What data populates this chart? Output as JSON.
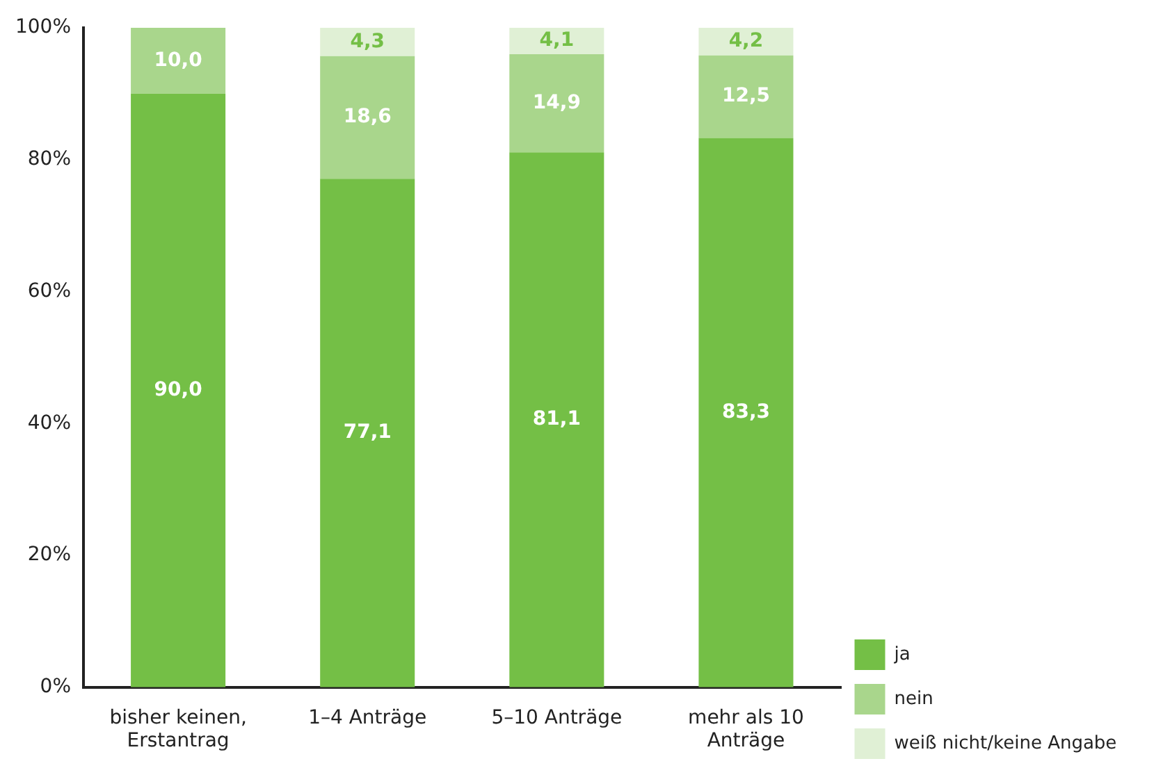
{
  "chart_data": {
    "type": "bar",
    "stacked": true,
    "categories": [
      "bisher keinen, Erstantrag",
      "1–4 Anträge",
      "5–10 Anträge",
      "mehr als 10 Anträge"
    ],
    "series": [
      {
        "name": "ja",
        "color": "#74bf46",
        "values": [
          90.0,
          77.1,
          81.1,
          83.3
        ],
        "value_labels": [
          "90,0",
          "77,1",
          "81,1",
          "83,3"
        ]
      },
      {
        "name": "nein",
        "color": "#a9d68c",
        "values": [
          10.0,
          18.6,
          14.9,
          12.5
        ],
        "value_labels": [
          "10,0",
          "18,6",
          "14,9",
          "12,5"
        ]
      },
      {
        "name": "weiß nicht/keine Angabe",
        "color": "#e0f0d5",
        "values": [
          null,
          4.3,
          4.1,
          4.2
        ],
        "value_labels": [
          null,
          "4,3",
          "4,1",
          "4,2"
        ]
      }
    ],
    "ylim": [
      0,
      100
    ],
    "yticks": [
      {
        "value": 0,
        "label": "0%"
      },
      {
        "value": 20,
        "label": "20%"
      },
      {
        "value": 40,
        "label": "40%"
      },
      {
        "value": 60,
        "label": "60%"
      },
      {
        "value": 80,
        "label": "80%"
      },
      {
        "value": 100,
        "label": "100%"
      }
    ],
    "grid": false,
    "legend": "bottom right"
  }
}
